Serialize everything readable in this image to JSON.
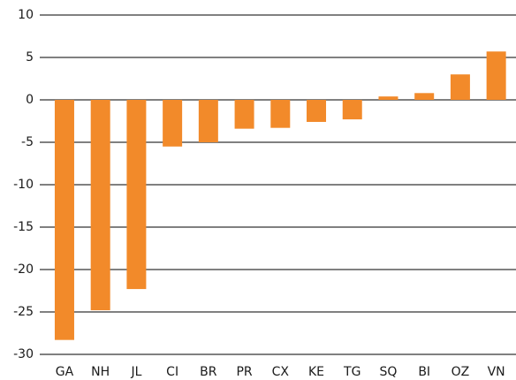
{
  "chart_data": {
    "type": "bar",
    "categories": [
      "GA",
      "NH",
      "JL",
      "CI",
      "BR",
      "PR",
      "CX",
      "KE",
      "TG",
      "SQ",
      "BI",
      "OZ",
      "VN"
    ],
    "values": [
      -28.3,
      -24.8,
      -22.3,
      -5.5,
      -5.0,
      -3.4,
      -3.3,
      -2.6,
      -2.3,
      0.4,
      0.8,
      3.0,
      5.7
    ],
    "color": "#f28a2a",
    "ylim": [
      -30,
      10
    ],
    "yticks": [
      -30,
      -25,
      -20,
      -15,
      -10,
      -5,
      0,
      5,
      10
    ],
    "grid": true
  }
}
